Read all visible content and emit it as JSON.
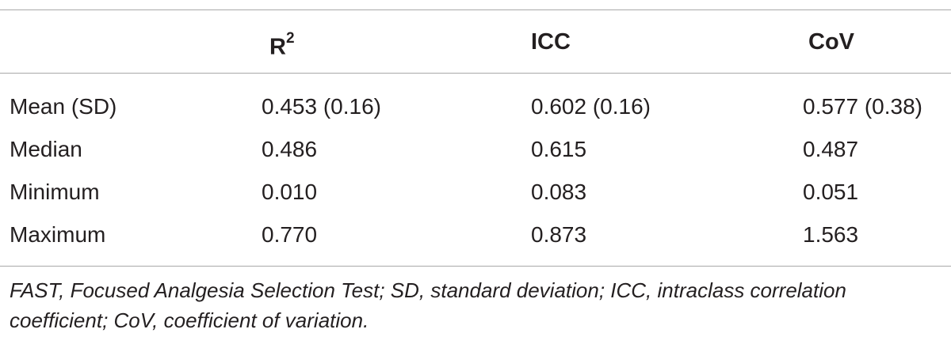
{
  "table": {
    "headers": {
      "col0": "",
      "col1_base": "R",
      "col1_sup": "2",
      "col2": "ICC",
      "col3": "CoV"
    },
    "rows": [
      {
        "label": "Mean (SD)",
        "r2": "0.453 (0.16)",
        "icc": "0.602 (0.16)",
        "cov": "0.577 (0.38)"
      },
      {
        "label": "Median",
        "r2": "0.486",
        "icc": "0.615",
        "cov": "0.487"
      },
      {
        "label": "Minimum",
        "r2": "0.010",
        "icc": "0.083",
        "cov": "0.051"
      },
      {
        "label": "Maximum",
        "r2": "0.770",
        "icc": "0.873",
        "cov": "1.563"
      }
    ],
    "footnote": "FAST, Focused Analgesia Selection Test; SD, standard deviation; ICC, intraclass correlation coefficient; CoV, coefficient of variation."
  }
}
